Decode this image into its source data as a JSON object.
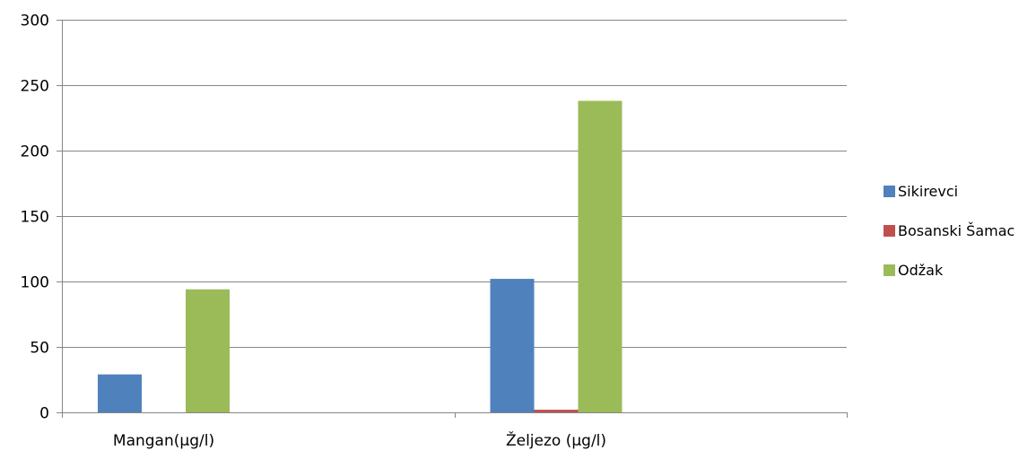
{
  "chart_data": {
    "type": "bar",
    "categories": [
      "Mangan(µg/l)",
      "Željezo (µg/l)"
    ],
    "series": [
      {
        "name": "Sikirevci",
        "values": [
          29,
          102
        ],
        "color": "#4F81BD"
      },
      {
        "name": "Bosanski Šamac",
        "values": [
          0,
          2
        ],
        "color": "#C0504D"
      },
      {
        "name": "Odžak",
        "values": [
          94,
          238
        ],
        "color": "#9BBB59"
      }
    ],
    "ylim": [
      0,
      300
    ],
    "yticks": [
      0,
      50,
      100,
      150,
      200,
      250,
      300
    ],
    "grid": true,
    "legend": "right",
    "title": "",
    "xlabel": "",
    "ylabel": ""
  }
}
